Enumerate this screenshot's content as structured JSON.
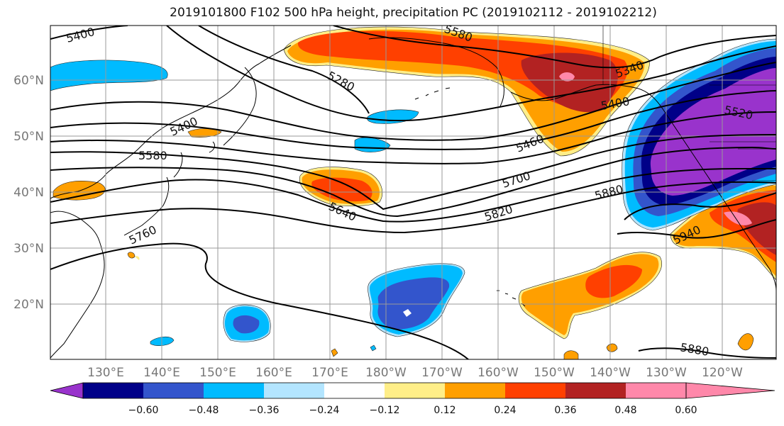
{
  "title": "2019101800 F102 500 hPa height, precipitation PC (2019102112 - 2019102212)",
  "map": {
    "lat_labels": [
      "60°N",
      "50°N",
      "40°N",
      "30°N",
      "20°N"
    ],
    "lon_labels": [
      "130°E",
      "140°E",
      "150°E",
      "160°E",
      "170°E",
      "180°W",
      "170°W",
      "160°W",
      "150°W",
      "140°W",
      "130°W",
      "120°W"
    ],
    "contour_labels": [
      "5400",
      "5280",
      "5400",
      "5580",
      "5640",
      "5760",
      "5460",
      "5700",
      "5820",
      "5880",
      "5340",
      "5400",
      "5520",
      "5940",
      "5880",
      "5580"
    ],
    "colors": {
      "deep_purple": "#9933cc",
      "navy": "#000088",
      "royal_blue": "#3355cc",
      "sky_blue": "#00bbff",
      "light_blue": "#b3e5ff",
      "white": "#ffffff",
      "light_yellow": "#ffee88",
      "orange": "#ff9f00",
      "red_orange": "#ff4000",
      "dark_red": "#b22222",
      "pink": "#ff88aa"
    }
  },
  "colorbar": {
    "labels": [
      "−0.60",
      "−0.48",
      "−0.36",
      "−0.24",
      "−0.12",
      "0.12",
      "0.24",
      "0.36",
      "0.48",
      "0.60"
    ],
    "colors": [
      "#9933cc",
      "#000088",
      "#3355cc",
      "#00bbff",
      "#b3e5ff",
      "#ffffff",
      "#ffee88",
      "#ff9f00",
      "#ff4000",
      "#b22222",
      "#ff88aa"
    ]
  }
}
